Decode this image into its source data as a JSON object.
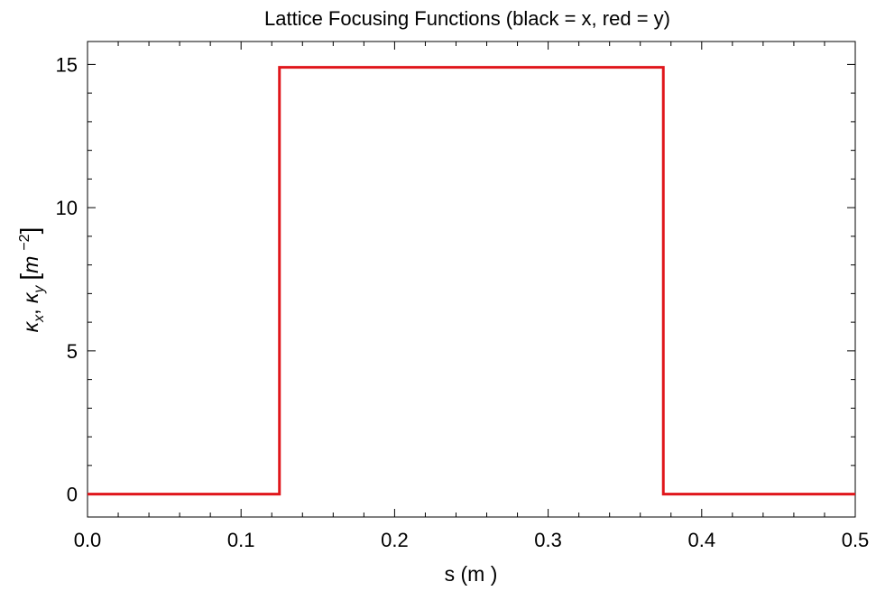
{
  "chart_data": {
    "type": "line",
    "title": "Lattice Focusing Functions (black = x, red = y)",
    "xlabel": "s (m )",
    "ylabel": {
      "kappa_x": "κ",
      "sub_x": "x",
      "sep": ", ",
      "kappa_y": "κ",
      "sub_y": "y",
      "bracket_open": "[",
      "unit": "m",
      "exponent": "−2",
      "bracket_close": "]"
    },
    "xlim": [
      0.0,
      0.5
    ],
    "ylim": [
      -0.8,
      15.8
    ],
    "x_ticks": [
      0.0,
      0.1,
      0.2,
      0.3,
      0.4,
      0.5
    ],
    "x_tick_labels": [
      "0.0",
      "0.1",
      "0.2",
      "0.3",
      "0.4",
      "0.5"
    ],
    "y_ticks": [
      0,
      5,
      10,
      15
    ],
    "y_tick_labels": [
      "0",
      "5",
      "10",
      "15"
    ],
    "grid": false,
    "series": [
      {
        "color": "#e0161b",
        "x": [
          0.0,
          0.125,
          0.125,
          0.375,
          0.375,
          0.5
        ],
        "y": [
          0.0,
          0.0,
          14.9,
          14.9,
          0.0,
          0.0
        ]
      }
    ]
  }
}
